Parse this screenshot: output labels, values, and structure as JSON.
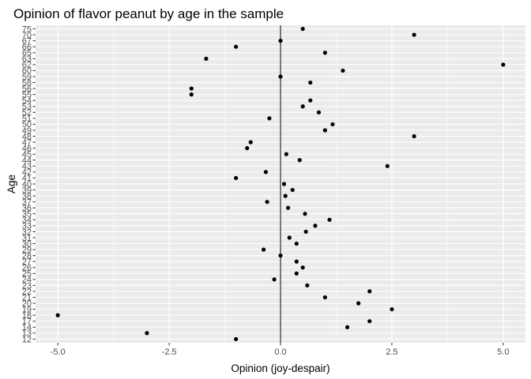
{
  "chart_data": {
    "type": "scatter",
    "title": "Opinion of flavor peanut by age in the sample",
    "xlabel": "Opinion (joy-despair)",
    "ylabel": "Age",
    "xlim": [
      -5.5,
      5.5
    ],
    "x_ticks": [
      -5.0,
      -2.5,
      0.0,
      2.5,
      5.0
    ],
    "x_tick_labels": [
      "-5.0",
      "-2.5",
      "0.0",
      "2.5",
      "5.0"
    ],
    "y_categories": [
      "12",
      "13",
      "14",
      "17",
      "18",
      "19",
      "20",
      "21",
      "22",
      "23",
      "24",
      "25",
      "26",
      "27",
      "28",
      "29",
      "30",
      "31",
      "32",
      "33",
      "34",
      "35",
      "36",
      "37",
      "38",
      "39",
      "40",
      "41",
      "42",
      "43",
      "44",
      "45",
      "46",
      "47",
      "48",
      "49",
      "50",
      "51",
      "52",
      "53",
      "54",
      "55",
      "56",
      "58",
      "59",
      "60",
      "62",
      "63",
      "65",
      "66",
      "67",
      "70",
      "75"
    ],
    "reference_line_x": 0,
    "grid": true,
    "panel_background": "#ebebeb",
    "point_color": "#000000",
    "points": [
      {
        "age": "75",
        "opinion": 0.5
      },
      {
        "age": "70",
        "opinion": 3.0
      },
      {
        "age": "67",
        "opinion": 0.0
      },
      {
        "age": "66",
        "opinion": -1.0
      },
      {
        "age": "65",
        "opinion": 1.0
      },
      {
        "age": "63",
        "opinion": -1.67
      },
      {
        "age": "62",
        "opinion": 5.0
      },
      {
        "age": "60",
        "opinion": 1.4
      },
      {
        "age": "59",
        "opinion": 0.0
      },
      {
        "age": "58",
        "opinion": 0.67
      },
      {
        "age": "56",
        "opinion": -2.0
      },
      {
        "age": "55",
        "opinion": -2.0
      },
      {
        "age": "54",
        "opinion": 0.67
      },
      {
        "age": "53",
        "opinion": 0.5
      },
      {
        "age": "52",
        "opinion": 0.86
      },
      {
        "age": "51",
        "opinion": -0.25
      },
      {
        "age": "50",
        "opinion": 1.17
      },
      {
        "age": "49",
        "opinion": 1.0
      },
      {
        "age": "48",
        "opinion": 3.0
      },
      {
        "age": "47",
        "opinion": -0.67
      },
      {
        "age": "46",
        "opinion": -0.75
      },
      {
        "age": "45",
        "opinion": 0.13
      },
      {
        "age": "44",
        "opinion": 0.43
      },
      {
        "age": "43",
        "opinion": 2.4
      },
      {
        "age": "42",
        "opinion": -0.33
      },
      {
        "age": "41",
        "opinion": -1.0
      },
      {
        "age": "40",
        "opinion": 0.08
      },
      {
        "age": "39",
        "opinion": 0.27
      },
      {
        "age": "38",
        "opinion": 0.11
      },
      {
        "age": "37",
        "opinion": -0.3
      },
      {
        "age": "36",
        "opinion": 0.17
      },
      {
        "age": "35",
        "opinion": 0.55
      },
      {
        "age": "34",
        "opinion": 1.1
      },
      {
        "age": "33",
        "opinion": 0.78
      },
      {
        "age": "32",
        "opinion": 0.57
      },
      {
        "age": "31",
        "opinion": 0.2
      },
      {
        "age": "30",
        "opinion": 0.36
      },
      {
        "age": "29",
        "opinion": -0.38
      },
      {
        "age": "28",
        "opinion": 0.0
      },
      {
        "age": "27",
        "opinion": 0.36
      },
      {
        "age": "26",
        "opinion": 0.5
      },
      {
        "age": "25",
        "opinion": 0.36
      },
      {
        "age": "24",
        "opinion": -0.14
      },
      {
        "age": "23",
        "opinion": 0.6
      },
      {
        "age": "22",
        "opinion": 2.0
      },
      {
        "age": "21",
        "opinion": 1.0
      },
      {
        "age": "20",
        "opinion": 1.75
      },
      {
        "age": "19",
        "opinion": 2.5
      },
      {
        "age": "18",
        "opinion": -5.0
      },
      {
        "age": "17",
        "opinion": 2.0
      },
      {
        "age": "14",
        "opinion": 1.5
      },
      {
        "age": "13",
        "opinion": -3.0
      },
      {
        "age": "12",
        "opinion": -1.0
      }
    ]
  }
}
